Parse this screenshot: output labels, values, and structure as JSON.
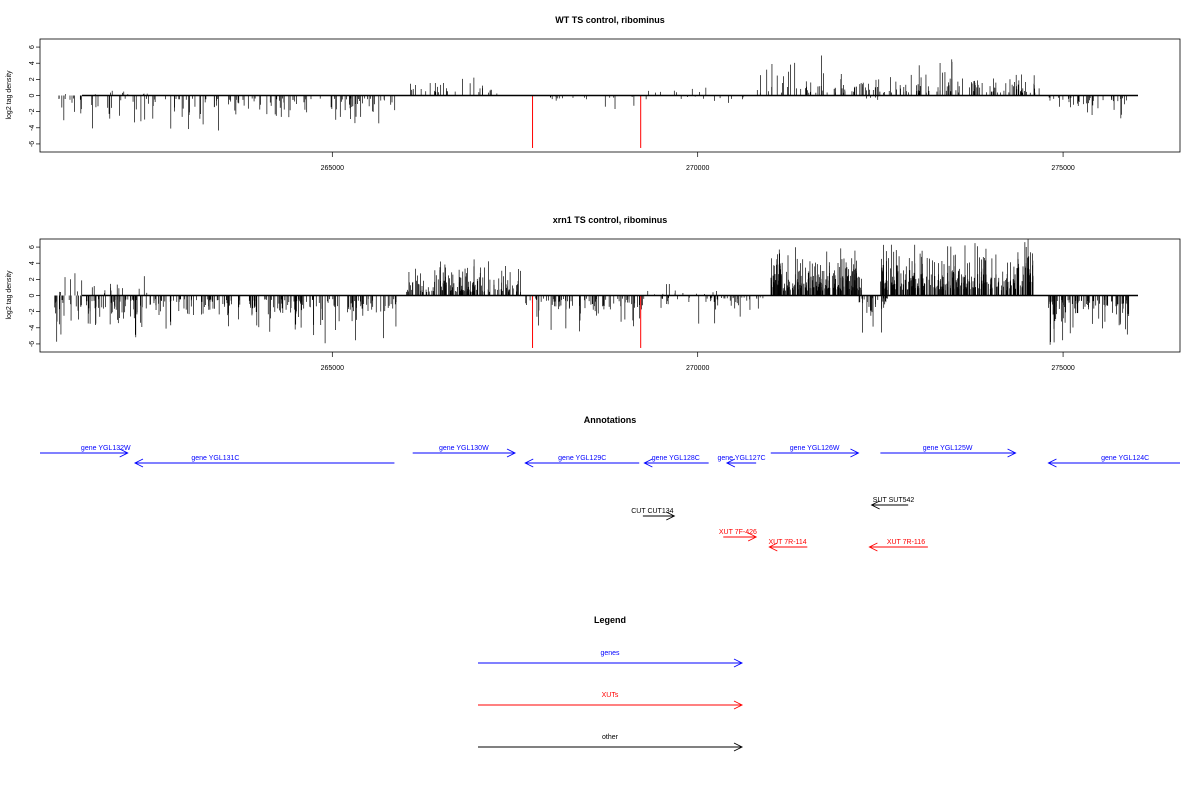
{
  "chart_data": [
    {
      "type": "bar",
      "title": "WT TS control, ribominus",
      "ylabel": "log2 tag density",
      "xlim": [
        261000,
        276600
      ],
      "ylim": [
        -7,
        7
      ],
      "x_ticks": [
        "265000",
        "270000",
        "275000"
      ],
      "x_tick_values": [
        265000,
        270000,
        275000
      ],
      "y_ticks": [
        "6",
        "4",
        "2",
        "0",
        "-2",
        "-4",
        "-6"
      ],
      "y_tick_values": [
        6,
        4,
        2,
        0,
        -2,
        -4,
        -6
      ],
      "highlight_bars": [
        {
          "x": 267740,
          "y": -6.5
        },
        {
          "x": 269220,
          "y": -6.5
        }
      ],
      "regions": [
        {
          "x0": 261200,
          "x1": 265800,
          "sign": -1,
          "amp": 2.4,
          "spike": 4.8,
          "n": 140
        },
        {
          "x0": 261200,
          "x1": 262500,
          "sign": 1,
          "amp": 1.0,
          "spike": 2.2,
          "n": 10
        },
        {
          "x0": 265780,
          "x1": 265860,
          "sign": -1,
          "amp": 5.0,
          "spike": 5.4,
          "n": 2
        },
        {
          "x0": 266050,
          "x1": 267300,
          "sign": 1,
          "amp": 1.6,
          "spike": 3.0,
          "n": 32
        },
        {
          "x0": 267760,
          "x1": 269300,
          "sign": -1,
          "amp": 1.0,
          "spike": 2.0,
          "n": 18
        },
        {
          "x0": 269300,
          "x1": 270300,
          "sign": 1,
          "amp": 1.0,
          "spike": 2.0,
          "n": 8
        },
        {
          "x0": 269700,
          "x1": 270800,
          "sign": -1,
          "amp": 0.8,
          "spike": 1.8,
          "n": 10
        },
        {
          "x0": 270800,
          "x1": 274700,
          "sign": 1,
          "amp": 2.2,
          "spike": 5.0,
          "n": 170
        },
        {
          "x0": 272100,
          "x1": 272500,
          "sign": -1,
          "amp": 0.6,
          "spike": 1.2,
          "n": 5
        },
        {
          "x0": 274800,
          "x1": 275900,
          "sign": -1,
          "amp": 1.6,
          "spike": 3.4,
          "n": 40
        }
      ]
    },
    {
      "type": "bar",
      "title": "xrn1 TS control, ribominus",
      "ylabel": "log2 tag density",
      "xlim": [
        261000,
        276600
      ],
      "ylim": [
        -7,
        7
      ],
      "x_ticks": [
        "265000",
        "270000",
        "275000"
      ],
      "x_tick_values": [
        265000,
        270000,
        275000
      ],
      "y_ticks": [
        "6",
        "4",
        "2",
        "0",
        "-2",
        "-4",
        "-6"
      ],
      "y_tick_values": [
        6,
        4,
        2,
        0,
        -2,
        -4,
        -6
      ],
      "highlight_bars": [
        {
          "x": 267740,
          "y": -6.5
        },
        {
          "x": 269220,
          "y": -6.5
        }
      ],
      "regions": [
        {
          "x0": 261200,
          "x1": 265900,
          "sign": -1,
          "amp": 3.0,
          "spike": 6.0,
          "n": 300
        },
        {
          "x0": 261200,
          "x1": 262500,
          "sign": 1,
          "amp": 1.8,
          "spike": 3.0,
          "n": 20
        },
        {
          "x0": 266000,
          "x1": 267600,
          "sign": 1,
          "amp": 2.8,
          "spike": 4.5,
          "n": 150
        },
        {
          "x0": 267620,
          "x1": 269300,
          "sign": -1,
          "amp": 2.4,
          "spike": 4.5,
          "n": 90
        },
        {
          "x0": 269300,
          "x1": 270300,
          "sign": 1,
          "amp": 1.0,
          "spike": 2.2,
          "n": 12
        },
        {
          "x0": 269400,
          "x1": 271000,
          "sign": -1,
          "amp": 1.6,
          "spike": 4.0,
          "n": 50
        },
        {
          "x0": 271000,
          "x1": 272250,
          "sign": 1,
          "amp": 4.0,
          "spike": 6.0,
          "n": 230
        },
        {
          "x0": 272150,
          "x1": 272600,
          "sign": -1,
          "amp": 2.2,
          "spike": 5.0,
          "n": 30
        },
        {
          "x0": 272500,
          "x1": 274600,
          "sign": 1,
          "amp": 4.3,
          "spike": 7.0,
          "n": 330
        },
        {
          "x0": 274800,
          "x1": 275900,
          "sign": -1,
          "amp": 3.4,
          "spike": 6.4,
          "n": 110
        }
      ]
    }
  ],
  "annotations": {
    "title": "Annotations",
    "features": [
      {
        "label": "gene YGL132W",
        "x0": 261000,
        "x1": 262200,
        "strand": "+",
        "kind": "gene",
        "row": 0,
        "label_x": 261900
      },
      {
        "label": "gene YGL131C",
        "x0": 262300,
        "x1": 265850,
        "strand": "-",
        "kind": "gene",
        "row": 1,
        "label_x": 263400
      },
      {
        "label": "gene YGL130W",
        "x0": 266100,
        "x1": 267500,
        "strand": "+",
        "kind": "gene",
        "row": 0,
        "label_x": 266800
      },
      {
        "label": "gene YGL129C",
        "x0": 267640,
        "x1": 269200,
        "strand": "-",
        "kind": "gene",
        "row": 1,
        "label_x": 268420
      },
      {
        "label": "gene YGL128C",
        "x0": 269270,
        "x1": 270150,
        "strand": "-",
        "kind": "gene",
        "row": 1,
        "label_x": 269700
      },
      {
        "label": "gene YGL127C",
        "x0": 270400,
        "x1": 270800,
        "strand": "-",
        "kind": "gene",
        "row": 1,
        "label_x": 270600
      },
      {
        "label": "gene YGL126W",
        "x0": 271000,
        "x1": 272200,
        "strand": "+",
        "kind": "gene",
        "row": 0,
        "label_x": 271600
      },
      {
        "label": "gene YGL125W",
        "x0": 272500,
        "x1": 274350,
        "strand": "+",
        "kind": "gene",
        "row": 0,
        "label_x": 273420
      },
      {
        "label": "gene YGL124C",
        "x0": 274800,
        "x1": 276600,
        "strand": "-",
        "kind": "gene",
        "row": 1,
        "label_x": 275850
      },
      {
        "label": "CUT CUT134",
        "x0": 269250,
        "x1": 269680,
        "strand": "+",
        "kind": "other",
        "row": 4,
        "label_x": 269380
      },
      {
        "label": "SUT SUT542",
        "x0": 272380,
        "x1": 272880,
        "strand": "-",
        "kind": "other",
        "row": 3,
        "label_x": 272680
      },
      {
        "label": "XUT 7F-426",
        "x0": 270350,
        "x1": 270800,
        "strand": "+",
        "kind": "xut",
        "row": 5,
        "label_x": 270550
      },
      {
        "label": "XUT 7R-114",
        "x0": 270980,
        "x1": 271500,
        "strand": "-",
        "kind": "xut",
        "row": 6,
        "label_x": 271230
      },
      {
        "label": "XUT 7R-116",
        "x0": 272350,
        "x1": 273150,
        "strand": "-",
        "kind": "xut",
        "row": 6,
        "label_x": 272850
      }
    ]
  },
  "legend": {
    "title": "Legend",
    "items": [
      {
        "label": "genes",
        "kind": "gene"
      },
      {
        "label": "XUTs",
        "kind": "xut"
      },
      {
        "label": "other",
        "kind": "other"
      }
    ]
  },
  "colors": {
    "gene": "#0000ff",
    "xut": "#ff0000",
    "other": "#000000",
    "bars": "#000000",
    "highlight": "#ff0000"
  }
}
